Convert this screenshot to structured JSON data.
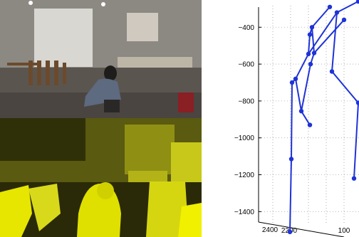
{
  "chart_data": {
    "type": "line",
    "title": "",
    "xlabel": "",
    "ylabel": "",
    "grid": true,
    "y_ticks": [
      -400,
      -600,
      -800,
      -1000,
      -1200,
      -1400
    ],
    "y_tick_labels": [
      "−400",
      "−600",
      "−800",
      "−1000",
      "−1200",
      "−1400"
    ],
    "x_tick_labels": [
      "2400",
      "2200",
      "100"
    ],
    "ylim": [
      -1530,
      -260
    ],
    "series": [
      {
        "values": [
          [
            -290,
            -400,
            -440,
            -545,
            -680,
            -700,
            -1115,
            -1510
          ],
          [
            -360,
            -540,
            -600,
            -855,
            -930
          ],
          [
            -260,
            -320,
            -640,
            -810,
            -1220
          ]
        ]
      }
    ]
  },
  "panels": {
    "top_label": "",
    "bottom_label": ""
  }
}
